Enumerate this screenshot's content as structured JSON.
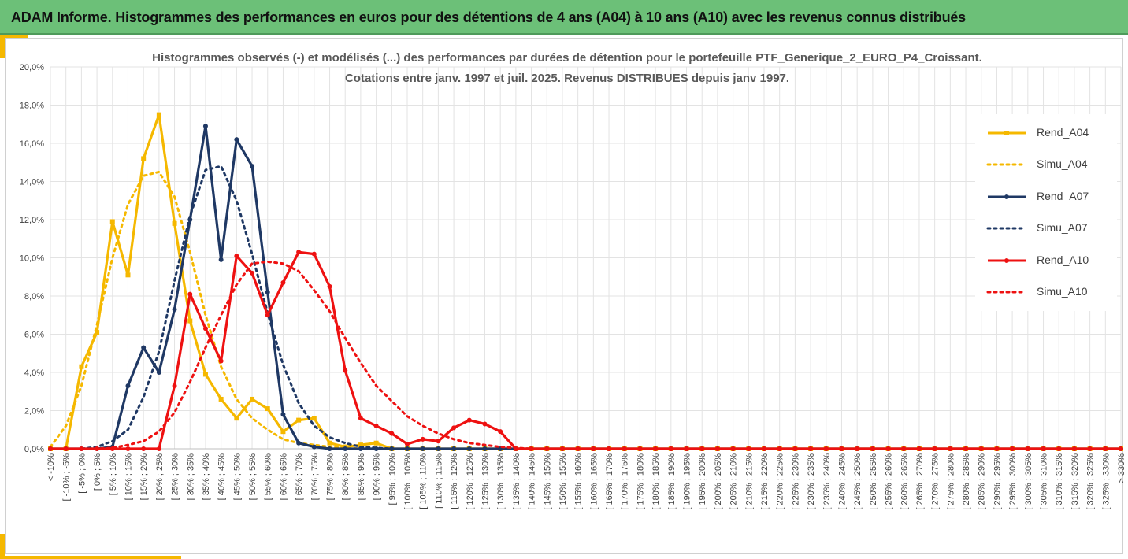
{
  "header": {
    "title": "ADAM Informe. Histogrammes des performances en euros pour des détentions de 4 ans (A04) à 10 ans (A10) avec les revenus connus distribués"
  },
  "colors": {
    "banner": "#6cc078",
    "accent": "#f5b800",
    "A04": "#f5b800",
    "A07": "#1f3864",
    "A10": "#ee1111"
  },
  "chart_data": {
    "type": "line",
    "title_line1": "Histogrammes observés (-) et modélisés (...) des performances par durées de détention pour  le portefeuille PTF_Generique_2_EURO_P4_Croissant.",
    "title_line2": "Cotations entre janv. 1997 et juil. 2025. Revenus DISTRIBUES depuis janv 1997.",
    "xlabel": "",
    "ylabel": "",
    "ylim": [
      0,
      20
    ],
    "yticks": [
      "0,0%",
      "2,0%",
      "4,0%",
      "6,0%",
      "8,0%",
      "10,0%",
      "12,0%",
      "14,0%",
      "16,0%",
      "18,0%",
      "20,0%"
    ],
    "grid": true,
    "legend_position": "right",
    "categories": [
      "< -10%",
      "[ -10% ; -5%",
      "[ -5% ; 0%",
      "[ 0% ; 5%",
      "[ 5% ; 10%",
      "[ 10% ; 15%",
      "[ 15% ; 20%",
      "[ 20% ; 25%",
      "[ 25% ; 30%",
      "[ 30% ; 35%",
      "[ 35% ; 40%",
      "[ 40% ; 45%",
      "[ 45% ; 50%",
      "[ 50% ; 55%",
      "[ 55% ; 60%",
      "[ 60% ; 65%",
      "[ 65% ; 70%",
      "[ 70% ; 75%",
      "[ 75% ; 80%",
      "[ 80% ; 85%",
      "[ 85% ; 90%",
      "[ 90% ; 95%",
      "[ 95% ; 100%",
      "[ 100% ; 105%",
      "[ 105% ; 110%",
      "[ 110% ; 115%",
      "[ 115% ; 120%",
      "[ 120% ; 125%",
      "[ 125% ; 130%",
      "[ 130% ; 135%",
      "[ 135% ; 140%",
      "[ 140% ; 145%",
      "[ 145% ; 150%",
      "[ 150% ; 155%",
      "[ 155% ; 160%",
      "[ 160% ; 165%",
      "[ 165% ; 170%",
      "[ 170% ; 175%",
      "[ 175% ; 180%",
      "[ 180% ; 185%",
      "[ 185% ; 190%",
      "[ 190% ; 195%",
      "[ 195% ; 200%",
      "[ 200% ; 205%",
      "[ 205% ; 210%",
      "[ 210% ; 215%",
      "[ 215% ; 220%",
      "[ 220% ; 225%",
      "[ 225% ; 230%",
      "[ 230% ; 235%",
      "[ 235% ; 240%",
      "[ 240% ; 245%",
      "[ 245% ; 250%",
      "[ 250% ; 255%",
      "[ 255% ; 260%",
      "[ 260% ; 265%",
      "[ 265% ; 270%",
      "[ 270% ; 275%",
      "[ 275% ; 280%",
      "[ 280% ; 285%",
      "[ 285% ; 290%",
      "[ 290% ; 295%",
      "[ 295% ; 300%",
      "[ 300% ; 305%",
      "[ 305% ; 310%",
      "[ 310% ; 315%",
      "[ 315% ; 320%",
      "[ 320% ; 325%",
      "[ 325% ; 330%",
      "> 330%"
    ],
    "series": [
      {
        "name": "Rend_A04",
        "style": "solid-marker-square",
        "color": "#f5b800",
        "values": [
          0,
          0,
          4.3,
          6.1,
          11.9,
          9.1,
          15.2,
          17.5,
          11.8,
          6.7,
          3.9,
          2.6,
          1.6,
          2.6,
          2.1,
          0.9,
          1.5,
          1.6,
          0.3,
          0.1,
          0.2,
          0.3,
          0,
          0,
          0,
          0,
          0,
          0,
          0,
          0,
          0,
          0,
          0,
          0,
          0,
          0,
          0,
          0,
          0,
          0,
          0,
          0,
          0,
          0,
          0,
          0,
          0,
          0,
          0,
          0,
          0,
          0,
          0,
          0,
          0,
          0,
          0,
          0,
          0,
          0,
          0,
          0,
          0,
          0,
          0,
          0,
          0,
          0,
          0,
          0
        ]
      },
      {
        "name": "Simu_A04",
        "style": "dotted",
        "color": "#f5b800",
        "values": [
          0.1,
          1.2,
          3.3,
          6.5,
          10.0,
          12.8,
          14.3,
          14.5,
          13.2,
          10.3,
          7.0,
          4.3,
          2.6,
          1.6,
          1.0,
          0.5,
          0.3,
          0.2,
          0.1,
          0.05,
          0,
          0,
          0,
          0,
          0,
          0,
          0,
          0,
          0,
          0,
          0,
          0,
          0,
          0,
          0,
          0,
          0,
          0,
          0,
          0,
          0,
          0,
          0,
          0,
          0,
          0,
          0,
          0,
          0,
          0,
          0,
          0,
          0,
          0,
          0,
          0,
          0,
          0,
          0,
          0,
          0,
          0,
          0,
          0,
          0,
          0,
          0,
          0,
          0,
          0
        ]
      },
      {
        "name": "Rend_A07",
        "style": "solid-marker-circle",
        "color": "#1f3864",
        "values": [
          0,
          0,
          0,
          0,
          0.1,
          3.3,
          5.3,
          4.0,
          7.3,
          12.0,
          16.9,
          9.9,
          16.2,
          14.8,
          8.2,
          1.8,
          0.3,
          0.1,
          0,
          0,
          0,
          0,
          0,
          0,
          0,
          0,
          0,
          0,
          0,
          0,
          0,
          0,
          0,
          0,
          0,
          0,
          0,
          0,
          0,
          0,
          0,
          0,
          0,
          0,
          0,
          0,
          0,
          0,
          0,
          0,
          0,
          0,
          0,
          0,
          0,
          0,
          0,
          0,
          0,
          0,
          0,
          0,
          0,
          0,
          0,
          0,
          0,
          0,
          0,
          0
        ]
      },
      {
        "name": "Simu_A07",
        "style": "dotted",
        "color": "#1f3864",
        "values": [
          0,
          0,
          0,
          0.1,
          0.4,
          1.0,
          2.7,
          5.1,
          8.8,
          12.2,
          14.6,
          14.8,
          13.0,
          10.2,
          7.1,
          4.4,
          2.4,
          1.2,
          0.6,
          0.3,
          0.1,
          0.05,
          0,
          0,
          0,
          0,
          0,
          0,
          0,
          0,
          0,
          0,
          0,
          0,
          0,
          0,
          0,
          0,
          0,
          0,
          0,
          0,
          0,
          0,
          0,
          0,
          0,
          0,
          0,
          0,
          0,
          0,
          0,
          0,
          0,
          0,
          0,
          0,
          0,
          0,
          0,
          0,
          0,
          0,
          0,
          0,
          0,
          0,
          0,
          0
        ]
      },
      {
        "name": "Rend_A10",
        "style": "solid-marker-circle",
        "color": "#ee1111",
        "values": [
          0,
          0,
          0,
          0,
          0,
          0,
          0,
          0,
          3.3,
          8.1,
          6.3,
          4.6,
          10.1,
          9.2,
          7.0,
          8.7,
          10.3,
          10.2,
          8.5,
          4.1,
          1.6,
          1.2,
          0.8,
          0.25,
          0.5,
          0.4,
          1.1,
          1.5,
          1.3,
          0.9,
          0,
          0,
          0,
          0,
          0,
          0,
          0,
          0,
          0,
          0,
          0,
          0,
          0,
          0,
          0,
          0,
          0,
          0,
          0,
          0,
          0,
          0,
          0,
          0,
          0,
          0,
          0,
          0,
          0,
          0,
          0,
          0,
          0,
          0,
          0,
          0,
          0,
          0,
          0,
          0
        ]
      },
      {
        "name": "Simu_A10",
        "style": "dotted",
        "color": "#ee1111",
        "values": [
          0,
          0,
          0,
          0,
          0.05,
          0.2,
          0.4,
          0.9,
          1.9,
          3.5,
          5.3,
          7.0,
          8.6,
          9.7,
          9.8,
          9.7,
          9.3,
          8.3,
          7.2,
          5.8,
          4.5,
          3.3,
          2.5,
          1.7,
          1.2,
          0.8,
          0.5,
          0.3,
          0.2,
          0.1,
          0.05,
          0,
          0,
          0,
          0,
          0,
          0,
          0,
          0,
          0,
          0,
          0,
          0,
          0,
          0,
          0,
          0,
          0,
          0,
          0,
          0,
          0,
          0,
          0,
          0,
          0,
          0,
          0,
          0,
          0,
          0,
          0,
          0,
          0,
          0,
          0,
          0,
          0,
          0,
          0
        ]
      }
    ]
  }
}
